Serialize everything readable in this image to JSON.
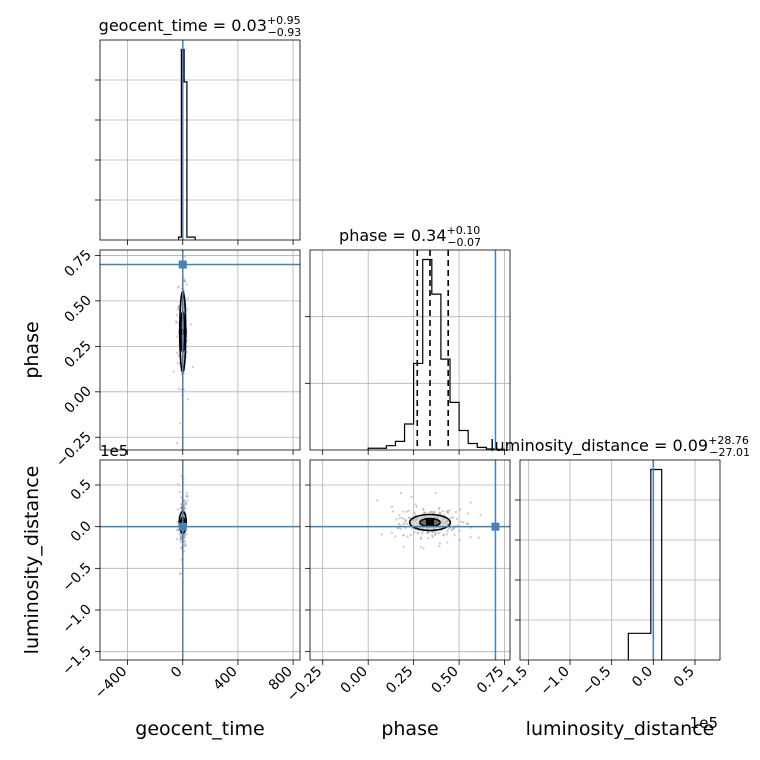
{
  "chart_data": {
    "type": "corner",
    "params": [
      "geocent_time",
      "phase",
      "luminosity_distance"
    ],
    "truth": {
      "geocent_time": 0,
      "phase": 0.7,
      "luminosity_distance": 0
    },
    "colors": {
      "truth": "#4682b4",
      "hist": "#000000",
      "grid": "#b0b0b0",
      "points": "#9e9e9e"
    },
    "grid": true,
    "offset_text": {
      "luminosity_distance": "1e5"
    },
    "diagonal": [
      {
        "param": "geocent_time",
        "title": {
          "name": "geocent_time",
          "value": "0.03",
          "plus": "+0.95",
          "minus": "−0.93"
        },
        "xlim": [
          -600,
          850
        ],
        "quantiles": [],
        "bin_edges": [
          -30,
          -10,
          10,
          30,
          90
        ],
        "counts": [
          15,
          1000,
          830,
          15
        ],
        "ymax": 1000,
        "ytick_count": 5
      },
      {
        "param": "phase",
        "title": {
          "name": "phase",
          "value": "0.34",
          "plus": "+0.10",
          "minus": "−0.07"
        },
        "xlim": [
          -0.32,
          0.78
        ],
        "quantiles": [
          0.27,
          0.34,
          0.44
        ],
        "bin_edges": [
          0.0,
          0.1,
          0.15,
          0.2,
          0.25,
          0.3,
          0.35,
          0.4,
          0.45,
          0.5,
          0.55,
          0.6,
          0.65,
          0.7,
          0.75
        ],
        "counts": [
          8,
          20,
          40,
          120,
          400,
          880,
          720,
          420,
          220,
          90,
          30,
          12,
          5,
          3
        ],
        "ymax": 880,
        "ytick_count": 3
      },
      {
        "param": "luminosity_distance",
        "title": {
          "name": "luminosity_distance",
          "value": "0.09",
          "plus": "+28.76",
          "minus": "−27.01"
        },
        "xlim": [
          -160000,
          80000
        ],
        "quantiles": [],
        "bin_edges": [
          -30000,
          -3000,
          10000
        ],
        "counts": [
          140,
          1000
        ],
        "ymax": 1000,
        "ytick_count": 5
      }
    ],
    "axes": {
      "geocent_time": {
        "label": "geocent_time",
        "lim": [
          -600,
          850
        ],
        "ticks": [
          -400,
          0,
          400,
          800
        ],
        "tick_labels": [
          "−400",
          "0",
          "400",
          "800"
        ]
      },
      "phase": {
        "label": "phase",
        "lim": [
          -0.32,
          0.78
        ],
        "ticks": [
          -0.25,
          0.0,
          0.25,
          0.5,
          0.75
        ],
        "tick_labels": [
          "−0.25",
          "0.00",
          "0.25",
          "0.50",
          "0.75"
        ]
      },
      "luminosity_distance": {
        "label": "luminosity_distance",
        "lim": [
          -160000,
          80000
        ],
        "ticks": [
          -150000,
          -100000,
          -50000,
          0,
          50000
        ],
        "tick_labels": [
          "−1.5",
          "−1.0",
          "−0.5",
          "0.0",
          "0.5"
        ]
      }
    },
    "panels": [
      {
        "x": "geocent_time",
        "y": "phase",
        "center": [
          0,
          0.33
        ],
        "spread": [
          12,
          0.12
        ],
        "core": [
          6,
          0.07
        ]
      },
      {
        "x": "geocent_time",
        "y": "luminosity_distance",
        "center": [
          0,
          5000
        ],
        "spread": [
          10,
          12000
        ],
        "core": [
          8,
          4000
        ]
      },
      {
        "x": "phase",
        "y": "luminosity_distance",
        "center": [
          0.34,
          5000
        ],
        "spread": [
          0.07,
          8000
        ],
        "core": [
          0.035,
          3000
        ]
      }
    ]
  }
}
